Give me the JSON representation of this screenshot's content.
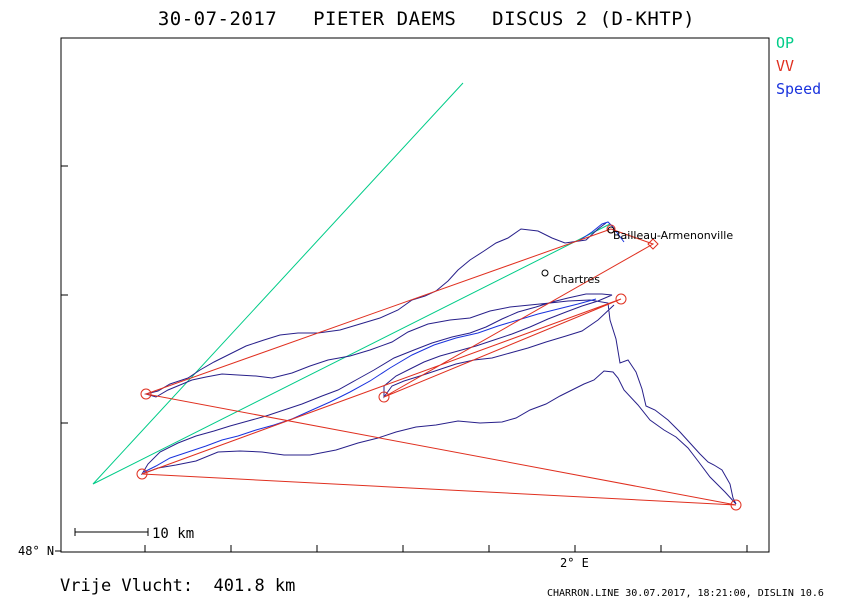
{
  "header": {
    "title": "30-07-2017   PIETER DAEMS   DISCUS 2 (D-KHTP)"
  },
  "legend": [
    {
      "label": "OP",
      "color": "#00cc88"
    },
    {
      "label": "VV",
      "color": "#e03020"
    },
    {
      "label": "Speed",
      "color": "#1a33dd"
    }
  ],
  "axes": {
    "lat_label": "48° N",
    "lon_label": "2° E"
  },
  "scale": {
    "label": "10 km"
  },
  "places": [
    {
      "name": "Bailleau-Armenonville"
    },
    {
      "name": "Chartres"
    }
  ],
  "flight": {
    "distance_label": "Vrije Vlucht:  401.8 km"
  },
  "footer": {
    "text": "CHARRON.LINE 30.07.2017, 18:21:00, DISLIN 10.6"
  }
}
